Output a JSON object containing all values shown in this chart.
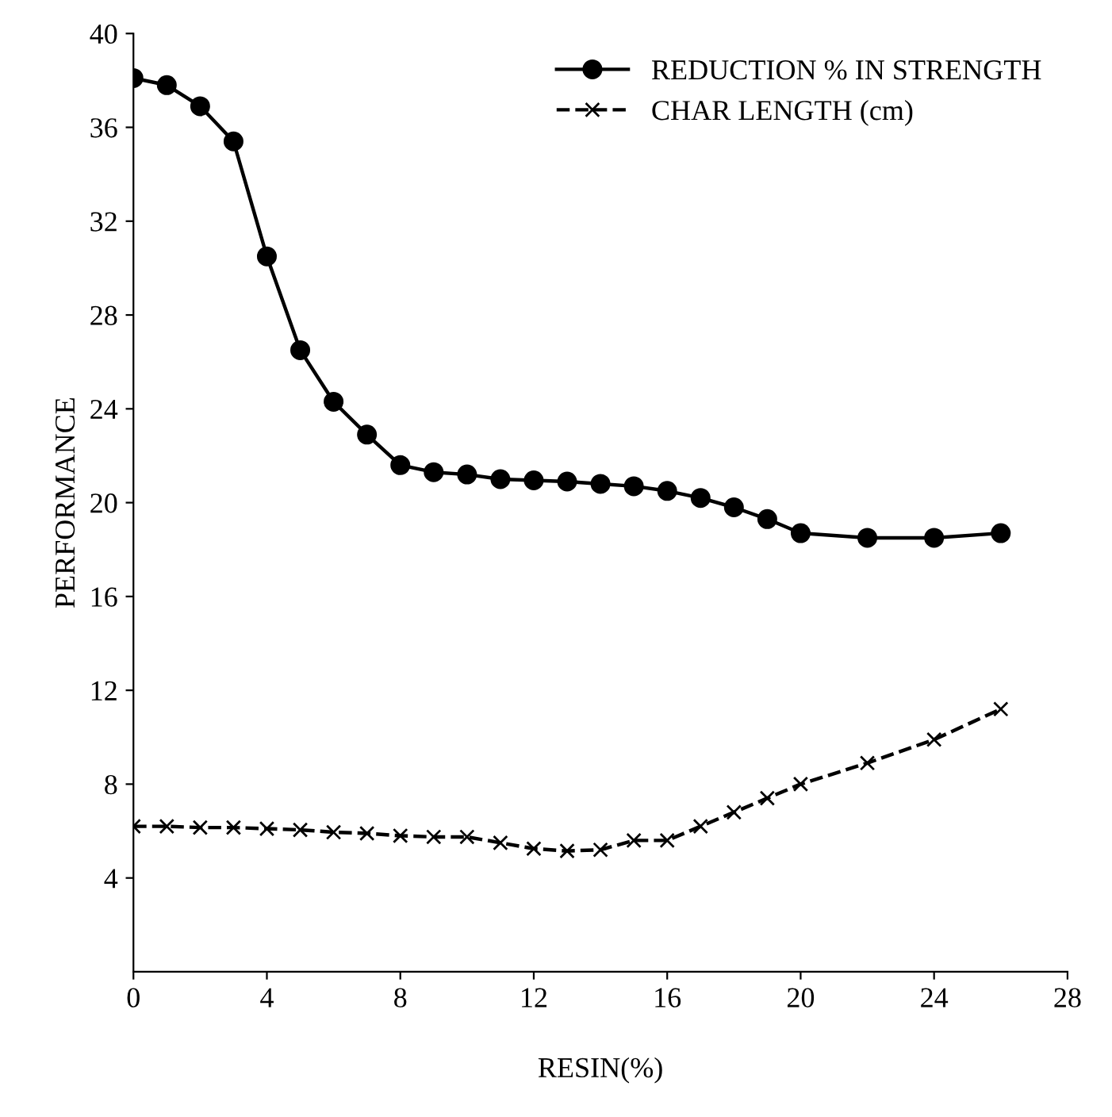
{
  "chart_data": {
    "type": "line",
    "xlabel": "RESIN(%)",
    "ylabel": "PERFORMANCE",
    "x": [
      0,
      1,
      2,
      3,
      4,
      5,
      6,
      7,
      8,
      9,
      10,
      11,
      12,
      13,
      14,
      15,
      16,
      17,
      18,
      19,
      20,
      22,
      24,
      26
    ],
    "series": [
      {
        "name": "REDUCTION % IN STRENGTH",
        "color": "#000000",
        "marker": "circle",
        "line_style": "solid",
        "values": [
          38.1,
          37.8,
          36.9,
          35.4,
          30.5,
          26.5,
          24.3,
          22.9,
          21.6,
          21.3,
          21.2,
          21.0,
          20.95,
          20.9,
          20.8,
          20.7,
          20.5,
          20.2,
          19.8,
          19.3,
          18.7,
          18.5,
          18.5,
          18.7
        ]
      },
      {
        "name": "CHAR LENGTH (cm)",
        "color": "#000000",
        "marker": "cross",
        "line_style": "dashed",
        "values": [
          6.2,
          6.2,
          6.15,
          6.15,
          6.1,
          6.05,
          5.95,
          5.9,
          5.8,
          5.75,
          5.75,
          5.5,
          5.25,
          5.15,
          5.2,
          5.6,
          5.6,
          6.2,
          6.8,
          7.4,
          8.0,
          8.9,
          9.9,
          11.2
        ]
      }
    ],
    "xlim": [
      0,
      28
    ],
    "xticks": [
      0,
      4,
      8,
      12,
      16,
      20,
      24,
      28
    ],
    "ylim": [
      0,
      40
    ],
    "yticks": [
      4,
      8,
      12,
      16,
      20,
      24,
      28,
      32,
      36,
      40
    ],
    "grid": false,
    "legend": "top right"
  }
}
